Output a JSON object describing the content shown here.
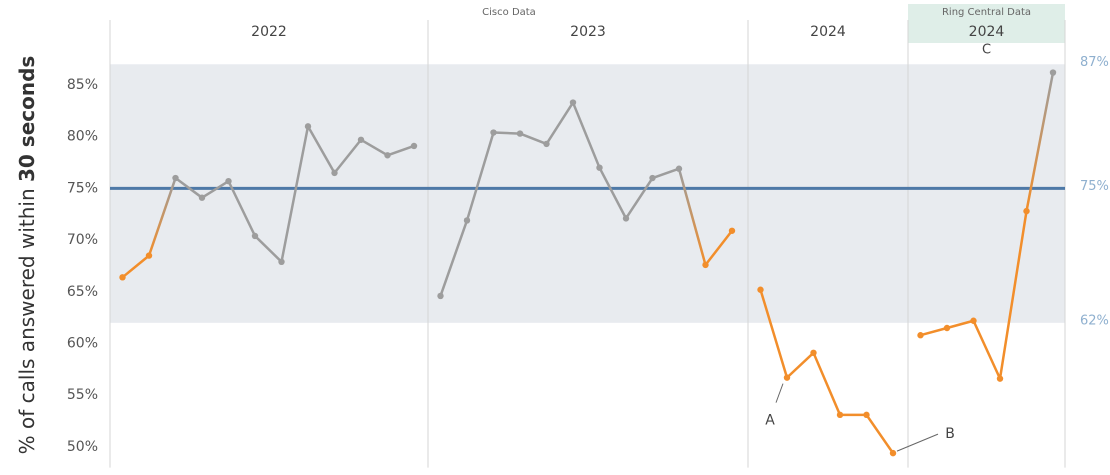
{
  "chart_data": {
    "type": "line",
    "y_label": "% of calls answered within",
    "y_label_emphasis": "30 seconds",
    "sources": [
      {
        "label": "Cisco Data",
        "from": 0,
        "to": 2
      },
      {
        "label": "Ring Central Data",
        "from": 3,
        "to": 3
      }
    ],
    "ylim": [
      48,
      89
    ],
    "yticks": [
      {
        "value": 50,
        "label": "50%"
      },
      {
        "value": 55,
        "label": "55%"
      },
      {
        "value": 60,
        "label": "60%"
      },
      {
        "value": 65,
        "label": "65%"
      },
      {
        "value": 70,
        "label": "70%"
      },
      {
        "value": 75,
        "label": "75%"
      },
      {
        "value": 80,
        "label": "80%"
      },
      {
        "value": 85,
        "label": "85%"
      }
    ],
    "control_limits": {
      "upper": {
        "value": 87,
        "label": "87%"
      },
      "center": {
        "value": 75,
        "label": "75%"
      },
      "lower": {
        "value": 62,
        "label": "62%"
      }
    },
    "center_color": "#4e79a7",
    "band_color": "#e8ebef",
    "panes": [
      {
        "name": "2022",
        "values": [
          66.4,
          68.5,
          76,
          74.1,
          75.7,
          70.4,
          67.9,
          81,
          76.5,
          79.7,
          78.2,
          79.1
        ],
        "colors": [
          "#f28e2b",
          "#f28e2b",
          "#9d9d9d",
          "#9d9d9d",
          "#9d9d9d",
          "#9d9d9d",
          "#9d9d9d",
          "#9d9d9d",
          "#9d9d9d",
          "#9d9d9d",
          "#9d9d9d",
          "#9d9d9d"
        ]
      },
      {
        "name": "2023",
        "values": [
          64.6,
          71.9,
          80.4,
          80.3,
          79.3,
          83.3,
          77,
          72.1,
          76,
          76.9,
          67.6,
          70.9
        ],
        "colors": [
          "#9d9d9d",
          "#9d9d9d",
          "#9d9d9d",
          "#9d9d9d",
          "#9d9d9d",
          "#9d9d9d",
          "#9d9d9d",
          "#9d9d9d",
          "#9d9d9d",
          "#9d9d9d",
          "#f28e2b",
          "#f28e2b"
        ]
      },
      {
        "name": "2024",
        "values": [
          65.2,
          56.7,
          59.1,
          53.1,
          53.1,
          49.4
        ],
        "colors": [
          "#f28e2b",
          "#f28e2b",
          "#f28e2b",
          "#f28e2b",
          "#f28e2b",
          "#f28e2b"
        ]
      },
      {
        "name": "2024",
        "sub_label": "C",
        "values": [
          60.8,
          61.5,
          62.2,
          56.6,
          72.8,
          86.2
        ],
        "colors": [
          "#f28e2b",
          "#f28e2b",
          "#f28e2b",
          "#f28e2b",
          "#f28e2b",
          "#9d9d9d"
        ]
      }
    ],
    "annotations": [
      {
        "text": "A",
        "pane": 2,
        "index": 1
      },
      {
        "text": "B",
        "pane": 2,
        "index": 5
      }
    ]
  }
}
